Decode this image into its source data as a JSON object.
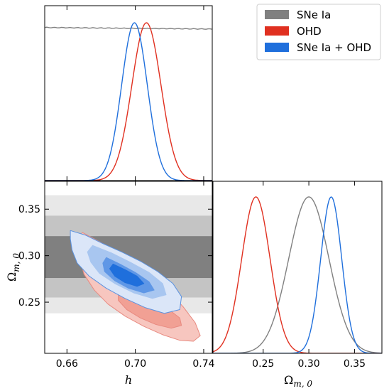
{
  "chart_data": {
    "type": "corner-triangle",
    "parameters": [
      {
        "name": "h",
        "label": "h",
        "range": [
          0.647,
          0.745
        ],
        "ticks": [
          0.66,
          0.7,
          0.74
        ],
        "tick_labels": [
          "0.66",
          "0.70",
          "0.74"
        ]
      },
      {
        "name": "Omega_m0",
        "label_main": "Ω",
        "label_sub": "m, 0",
        "range": [
          0.195,
          0.38
        ],
        "ticks": [
          0.25,
          0.3,
          0.35
        ],
        "tick_labels": [
          "0.25",
          "0.30",
          "0.35"
        ]
      }
    ],
    "legend": {
      "position": "top-right",
      "entries": [
        "SNe Ia",
        "OHD",
        "SNe Ia + OHD"
      ]
    },
    "series": [
      {
        "name": "SNe Ia",
        "color": "#808080",
        "h_flat_level": 0.97,
        "omega_mean": 0.3,
        "omega_sigma": 0.022,
        "bands_2d": [
          {
            "level": "3sigma",
            "lo": 0.238,
            "hi": 0.365,
            "color": "#e8e8e8"
          },
          {
            "level": "2sigma",
            "lo": 0.255,
            "hi": 0.343,
            "color": "#c4c4c4"
          },
          {
            "level": "1sigma",
            "lo": 0.276,
            "hi": 0.321,
            "color": "#808080"
          }
        ]
      },
      {
        "name": "OHD",
        "color": "#e03020",
        "h_mean": 0.7065,
        "h_sigma": 0.0085,
        "omega_mean": 0.242,
        "omega_sigma": 0.0155,
        "contours_2d": [
          {
            "level": "2sigma",
            "fill": "#f7c6bf",
            "edge": "#e88a80",
            "points": [
              [
                0.669,
                0.325
              ],
              [
                0.676,
                0.318
              ],
              [
                0.687,
                0.307
              ],
              [
                0.698,
                0.294
              ],
              [
                0.709,
                0.279
              ],
              [
                0.719,
                0.263
              ],
              [
                0.728,
                0.245
              ],
              [
                0.735,
                0.228
              ],
              [
                0.738,
                0.214
              ],
              [
                0.734,
                0.208
              ],
              [
                0.726,
                0.209
              ],
              [
                0.716,
                0.215
              ],
              [
                0.705,
                0.224
              ],
              [
                0.694,
                0.235
              ],
              [
                0.684,
                0.248
              ],
              [
                0.676,
                0.263
              ],
              [
                0.67,
                0.28
              ],
              [
                0.667,
                0.3
              ],
              [
                0.667,
                0.318
              ]
            ]
          },
          {
            "level": "1sigma",
            "fill": "#f1a094",
            "edge": "#e88a80",
            "points": [
              [
                0.694,
                0.268
              ],
              [
                0.702,
                0.261
              ],
              [
                0.711,
                0.252
              ],
              [
                0.719,
                0.243
              ],
              [
                0.726,
                0.233
              ],
              [
                0.727,
                0.225
              ],
              [
                0.721,
                0.222
              ],
              [
                0.712,
                0.226
              ],
              [
                0.703,
                0.233
              ],
              [
                0.695,
                0.242
              ],
              [
                0.69,
                0.252
              ],
              [
                0.69,
                0.262
              ]
            ]
          }
        ]
      },
      {
        "name": "SNe Ia + OHD",
        "color": "#1f6fdc",
        "h_mean": 0.6995,
        "h_sigma": 0.0075,
        "omega_mean": 0.3245,
        "omega_sigma": 0.0115,
        "contours_2d": [
          {
            "level": "2sigma",
            "fill": "#dbe6f8",
            "edge": "#5b92e0",
            "points": [
              [
                0.662,
                0.327
              ],
              [
                0.671,
                0.322
              ],
              [
                0.681,
                0.313
              ],
              [
                0.692,
                0.304
              ],
              [
                0.703,
                0.294
              ],
              [
                0.713,
                0.283
              ],
              [
                0.722,
                0.27
              ],
              [
                0.727,
                0.256
              ],
              [
                0.726,
                0.242
              ],
              [
                0.717,
                0.238
              ],
              [
                0.706,
                0.244
              ],
              [
                0.694,
                0.254
              ],
              [
                0.683,
                0.265
              ],
              [
                0.673,
                0.278
              ],
              [
                0.666,
                0.292
              ],
              [
                0.663,
                0.306
              ],
              [
                0.662,
                0.318
              ]
            ]
          },
          {
            "level": "1.5sigma",
            "fill": "#a8c6f0",
            "edge": "#a8c6f0",
            "points": [
              [
                0.675,
                0.311
              ],
              [
                0.686,
                0.303
              ],
              [
                0.697,
                0.293
              ],
              [
                0.708,
                0.282
              ],
              [
                0.716,
                0.27
              ],
              [
                0.718,
                0.258
              ],
              [
                0.71,
                0.254
              ],
              [
                0.699,
                0.26
              ],
              [
                0.688,
                0.27
              ],
              [
                0.679,
                0.281
              ],
              [
                0.674,
                0.293
              ],
              [
                0.672,
                0.304
              ]
            ]
          },
          {
            "level": "1sigma",
            "fill": "#5f97e6",
            "edge": "#5f97e6",
            "points": [
              [
                0.683,
                0.298
              ],
              [
                0.691,
                0.291
              ],
              [
                0.7,
                0.282
              ],
              [
                0.708,
                0.272
              ],
              [
                0.711,
                0.263
              ],
              [
                0.705,
                0.26
              ],
              [
                0.696,
                0.265
              ],
              [
                0.688,
                0.273
              ],
              [
                0.682,
                0.283
              ],
              [
                0.681,
                0.292
              ]
            ]
          },
          {
            "level": "0.5sigma",
            "fill": "#1f6fdc",
            "edge": "#1f6fdc",
            "points": [
              [
                0.687,
                0.291
              ],
              [
                0.694,
                0.285
              ],
              [
                0.701,
                0.278
              ],
              [
                0.705,
                0.27
              ],
              [
                0.701,
                0.267
              ],
              [
                0.694,
                0.271
              ],
              [
                0.688,
                0.278
              ],
              [
                0.685,
                0.286
              ]
            ]
          }
        ]
      }
    ]
  }
}
